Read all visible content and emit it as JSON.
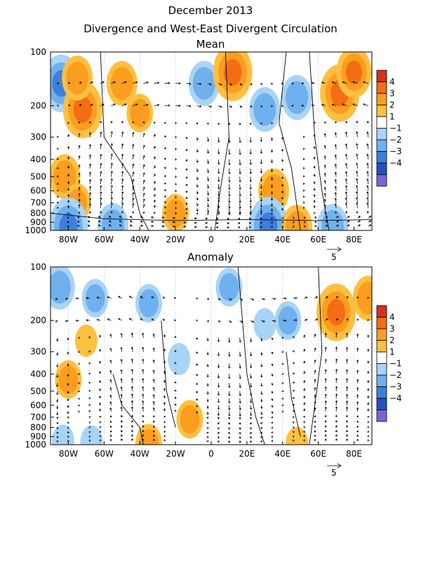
{
  "title": "December 2013",
  "subtitle": "Divergence and West-East Divergent Circulation",
  "colorbar": {
    "labels": [
      "4",
      "3",
      "2",
      "1",
      "−1",
      "−2",
      "−3",
      "−4"
    ],
    "colors": [
      "#d7301f",
      "#f46d14",
      "#fb9d1e",
      "#fdc040",
      "#ffffff",
      "#a8d4f6",
      "#6fb0ee",
      "#3e7fdc",
      "#2450c4",
      "#7a63d6"
    ]
  },
  "chart_data": [
    {
      "type": "heatmap",
      "panel_title": "Mean",
      "x_ticks": [
        "80W",
        "60W",
        "40W",
        "20W",
        "0",
        "20E",
        "40E",
        "60E",
        "80E"
      ],
      "x_tick_values": [
        -80,
        -60,
        -40,
        -20,
        0,
        20,
        40,
        60,
        80
      ],
      "xlim": [
        -90,
        90
      ],
      "y_ticks": [
        "100",
        "200",
        "300",
        "400",
        "500",
        "600",
        "700",
        "800",
        "900",
        "1000"
      ],
      "y_tick_values": [
        100,
        200,
        300,
        400,
        500,
        600,
        700,
        800,
        900,
        1000
      ],
      "ylim": [
        1000,
        100
      ],
      "y_scale": "log",
      "reference_vector_label": "5",
      "regions": [
        {
          "lon": -84,
          "p": 150,
          "value": -3.0
        },
        {
          "lon": -72,
          "p": 210,
          "value": 3.0
        },
        {
          "lon": -75,
          "p": 140,
          "value": 2.0
        },
        {
          "lon": -50,
          "p": 150,
          "value": 2.0
        },
        {
          "lon": -40,
          "p": 220,
          "value": 1.5
        },
        {
          "lon": -4,
          "p": 150,
          "value": -2.0
        },
        {
          "lon": 12,
          "p": 130,
          "value": 3.0
        },
        {
          "lon": 30,
          "p": 210,
          "value": -2.0
        },
        {
          "lon": 48,
          "p": 180,
          "value": -2.0
        },
        {
          "lon": 72,
          "p": 170,
          "value": 3.0
        },
        {
          "lon": 80,
          "p": 130,
          "value": 2.5
        },
        {
          "lon": -82,
          "p": 500,
          "value": 2.0
        },
        {
          "lon": -75,
          "p": 700,
          "value": 1.5
        },
        {
          "lon": 35,
          "p": 600,
          "value": 2.0
        },
        {
          "lon": -20,
          "p": 800,
          "value": 1.5
        },
        {
          "lon": -80,
          "p": 950,
          "value": -3.0
        },
        {
          "lon": -55,
          "p": 940,
          "value": -2.0
        },
        {
          "lon": 32,
          "p": 940,
          "value": -3.0
        },
        {
          "lon": 68,
          "p": 950,
          "value": -2.0
        },
        {
          "lon": 48,
          "p": 960,
          "value": 2.0
        }
      ]
    },
    {
      "type": "heatmap",
      "panel_title": "Anomaly",
      "x_ticks": [
        "80W",
        "60W",
        "40W",
        "20W",
        "0",
        "20E",
        "40E",
        "60E",
        "80E"
      ],
      "x_tick_values": [
        -80,
        -60,
        -40,
        -20,
        0,
        20,
        40,
        60,
        80
      ],
      "xlim": [
        -90,
        90
      ],
      "y_ticks": [
        "100",
        "200",
        "300",
        "400",
        "500",
        "600",
        "700",
        "800",
        "900",
        "1000"
      ],
      "y_tick_values": [
        100,
        200,
        300,
        400,
        500,
        600,
        700,
        800,
        900,
        1000
      ],
      "ylim": [
        1000,
        100
      ],
      "y_scale": "log",
      "reference_vector_label": "5",
      "regions": [
        {
          "lon": -85,
          "p": 130,
          "value": -2.0
        },
        {
          "lon": -65,
          "p": 150,
          "value": -1.5
        },
        {
          "lon": -35,
          "p": 160,
          "value": -1.5
        },
        {
          "lon": 10,
          "p": 130,
          "value": -1.5
        },
        {
          "lon": 43,
          "p": 200,
          "value": -1.5
        },
        {
          "lon": 30,
          "p": 210,
          "value": -1.0
        },
        {
          "lon": 70,
          "p": 180,
          "value": 3.0
        },
        {
          "lon": 88,
          "p": 150,
          "value": 2.0
        },
        {
          "lon": -70,
          "p": 260,
          "value": 1.0
        },
        {
          "lon": -80,
          "p": 430,
          "value": 1.5
        },
        {
          "lon": -12,
          "p": 720,
          "value": 1.5
        },
        {
          "lon": -35,
          "p": 980,
          "value": 1.5
        },
        {
          "lon": -83,
          "p": 950,
          "value": -1.0
        },
        {
          "lon": -67,
          "p": 960,
          "value": -1.0
        },
        {
          "lon": 48,
          "p": 980,
          "value": 1.0
        },
        {
          "lon": -18,
          "p": 330,
          "value": -1.0
        }
      ]
    }
  ]
}
